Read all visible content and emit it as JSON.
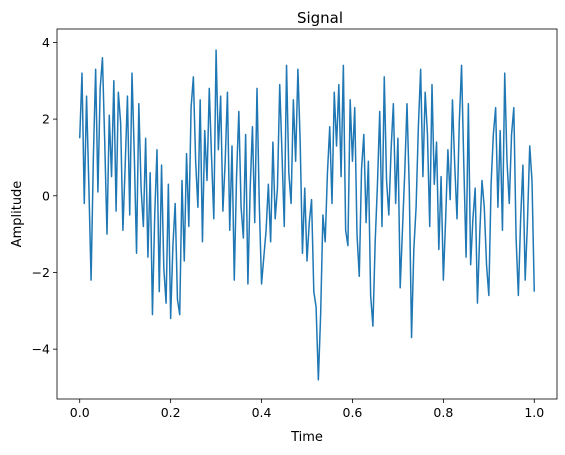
{
  "chart_data": {
    "type": "line",
    "title": "Signal",
    "xlabel": "Time",
    "ylabel": "Amplitude",
    "xlim": [
      -0.05,
      1.05
    ],
    "ylim": [
      -5.3,
      4.35
    ],
    "xticks": [
      0.0,
      0.2,
      0.4,
      0.6,
      0.8,
      1.0
    ],
    "xtick_labels": [
      "0.0",
      "0.2",
      "0.4",
      "0.6",
      "0.8",
      "1.0"
    ],
    "yticks": [
      -4,
      -2,
      0,
      2,
      4
    ],
    "ytick_labels": [
      "−4",
      "−2",
      "0",
      "2",
      "4"
    ],
    "grid": false,
    "legend": "none",
    "colors": {
      "series": "#1f77b4",
      "axes": "#000000",
      "background": "#ffffff"
    },
    "series": [
      {
        "x": [
          0.0,
          0.005,
          0.01,
          0.015,
          0.02,
          0.025,
          0.03,
          0.035,
          0.04,
          0.045,
          0.05,
          0.055,
          0.06,
          0.065,
          0.07,
          0.075,
          0.08,
          0.085,
          0.09,
          0.095,
          0.1,
          0.105,
          0.11,
          0.115,
          0.12,
          0.125,
          0.13,
          0.135,
          0.14,
          0.145,
          0.15,
          0.155,
          0.16,
          0.165,
          0.17,
          0.175,
          0.18,
          0.185,
          0.19,
          0.195,
          0.2,
          0.205,
          0.21,
          0.215,
          0.22,
          0.225,
          0.23,
          0.235,
          0.24,
          0.245,
          0.25,
          0.255,
          0.26,
          0.265,
          0.27,
          0.275,
          0.28,
          0.285,
          0.29,
          0.295,
          0.3,
          0.305,
          0.31,
          0.315,
          0.32,
          0.325,
          0.33,
          0.335,
          0.34,
          0.345,
          0.35,
          0.355,
          0.36,
          0.365,
          0.37,
          0.375,
          0.38,
          0.385,
          0.39,
          0.395,
          0.4,
          0.405,
          0.41,
          0.415,
          0.42,
          0.425,
          0.43,
          0.435,
          0.44,
          0.445,
          0.45,
          0.455,
          0.46,
          0.465,
          0.47,
          0.475,
          0.48,
          0.485,
          0.49,
          0.495,
          0.5,
          0.505,
          0.51,
          0.515,
          0.52,
          0.525,
          0.53,
          0.535,
          0.54,
          0.545,
          0.55,
          0.555,
          0.56,
          0.565,
          0.57,
          0.575,
          0.58,
          0.585,
          0.59,
          0.595,
          0.6,
          0.605,
          0.61,
          0.615,
          0.62,
          0.625,
          0.63,
          0.635,
          0.64,
          0.645,
          0.65,
          0.655,
          0.66,
          0.665,
          0.67,
          0.675,
          0.68,
          0.685,
          0.69,
          0.695,
          0.7,
          0.705,
          0.71,
          0.715,
          0.72,
          0.725,
          0.73,
          0.735,
          0.74,
          0.745,
          0.75,
          0.755,
          0.76,
          0.765,
          0.77,
          0.775,
          0.78,
          0.785,
          0.79,
          0.795,
          0.8,
          0.805,
          0.81,
          0.815,
          0.82,
          0.825,
          0.83,
          0.835,
          0.84,
          0.845,
          0.85,
          0.855,
          0.86,
          0.865,
          0.87,
          0.875,
          0.88,
          0.885,
          0.89,
          0.895,
          0.9,
          0.905,
          0.91,
          0.915,
          0.92,
          0.925,
          0.93,
          0.935,
          0.94,
          0.945,
          0.95,
          0.955,
          0.96,
          0.965,
          0.97,
          0.975,
          0.98,
          0.985,
          0.99,
          0.995,
          1.0
        ],
        "y": [
          1.5,
          3.2,
          -0.2,
          2.6,
          0.3,
          -2.2,
          1.0,
          3.3,
          0.1,
          2.8,
          3.6,
          1.4,
          -1.0,
          2.1,
          0.5,
          3.0,
          -0.4,
          2.7,
          1.9,
          -0.9,
          0.8,
          2.6,
          -0.5,
          3.2,
          1.1,
          -1.5,
          2.4,
          0.2,
          -0.8,
          1.5,
          -1.6,
          0.6,
          -3.1,
          -0.5,
          1.2,
          -2.5,
          0.8,
          -1.9,
          -2.8,
          0.3,
          -3.2,
          -1.3,
          -0.2,
          -2.7,
          -3.1,
          0.4,
          -1.7,
          1.1,
          -0.8,
          2.3,
          3.1,
          0.9,
          -0.3,
          2.5,
          -1.2,
          1.7,
          0.4,
          2.8,
          1.0,
          -0.6,
          3.8,
          1.2,
          2.6,
          -0.4,
          0.9,
          2.7,
          -0.9,
          1.3,
          -2.2,
          0.5,
          2.2,
          -0.3,
          -1.1,
          1.6,
          -2.3,
          0.2,
          1.8,
          -0.7,
          2.8,
          -0.2,
          -2.3,
          -1.6,
          -0.9,
          0.3,
          -1.2,
          1.4,
          -0.6,
          0.2,
          2.9,
          1.1,
          -0.8,
          3.4,
          0.6,
          -0.2,
          2.5,
          0.9,
          3.3,
          1.4,
          -1.5,
          0.2,
          -1.7,
          -0.7,
          -0.1,
          -2.5,
          -2.9,
          -4.8,
          -3.1,
          -0.5,
          -1.2,
          0.6,
          1.8,
          -0.2,
          2.7,
          1.3,
          2.9,
          0.5,
          3.4,
          -0.9,
          -1.3,
          2.5,
          0.9,
          2.3,
          -1.0,
          -2.1,
          0.7,
          1.6,
          -0.7,
          0.9,
          -2.6,
          -3.4,
          -1.2,
          0.3,
          2.2,
          -0.8,
          3.1,
          0.4,
          -0.5,
          1.2,
          2.4,
          -0.2,
          1.5,
          -2.4,
          -0.9,
          0.6,
          2.4,
          0.2,
          -3.7,
          -1.4,
          -0.3,
          1.8,
          3.3,
          0.5,
          2.7,
          1.6,
          -0.8,
          2.9,
          0.3,
          1.4,
          -1.4,
          0.5,
          -2.2,
          -0.6,
          1.2,
          -0.1,
          2.5,
          0.8,
          -0.6,
          1.9,
          3.4,
          0.8,
          -1.6,
          2.4,
          -1.8,
          -0.6,
          0.2,
          -2.8,
          -1.0,
          0.4,
          -0.3,
          -1.8,
          -2.6,
          0.3,
          1.6,
          2.3,
          -0.3,
          1.7,
          -0.9,
          3.2,
          0.9,
          -0.2,
          1.6,
          2.3,
          -1.1,
          -2.6,
          -0.6,
          0.8,
          -2.2,
          -0.7,
          1.3,
          0.4,
          -2.5
        ]
      }
    ]
  }
}
